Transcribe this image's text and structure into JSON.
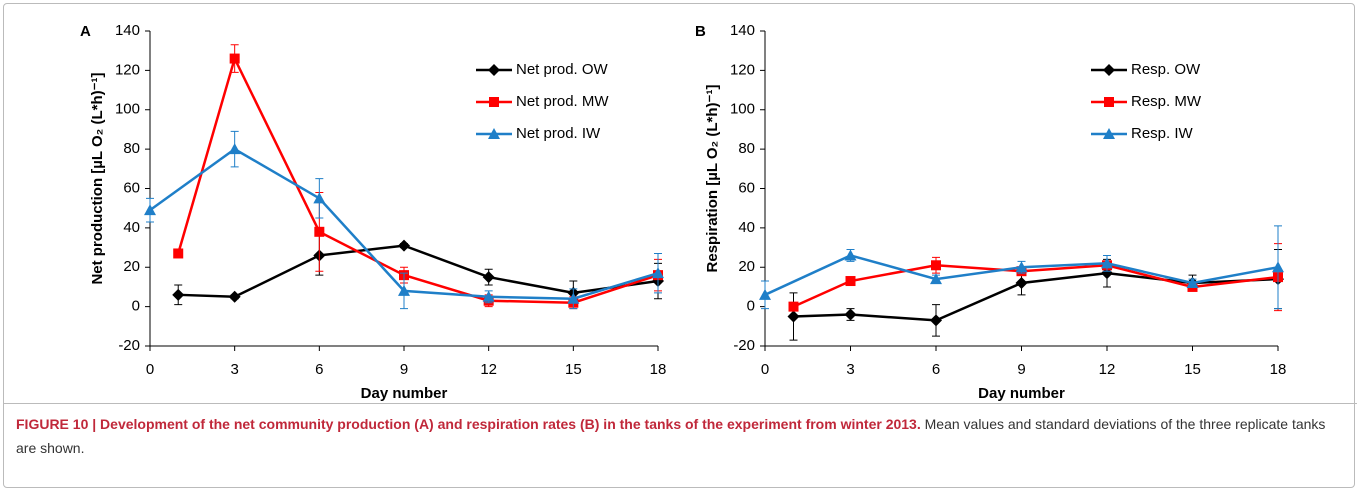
{
  "chart_data": [
    {
      "type": "line",
      "panel_label": "A",
      "ylabel": "Net production [µL O₂ (L*h)⁻¹]",
      "xlabel": "Day number",
      "xlim": [
        0,
        18
      ],
      "xticks": [
        0,
        3,
        6,
        9,
        12,
        15,
        18
      ],
      "ylim": [
        -20,
        140
      ],
      "yticks": [
        -20,
        0,
        20,
        40,
        60,
        80,
        100,
        120,
        140
      ],
      "legend": "upper right",
      "series": [
        {
          "name": "Net prod. OW",
          "color": "#000000",
          "marker": "diamond",
          "x": [
            1,
            3,
            6,
            9,
            12,
            15,
            18
          ],
          "values": [
            6,
            5,
            26,
            31,
            15,
            7,
            13
          ],
          "errors": [
            5,
            1,
            10,
            1,
            4,
            6,
            9
          ]
        },
        {
          "name": "Net prod. MW",
          "color": "#ff0000",
          "marker": "square",
          "x": [
            1,
            3,
            6,
            9,
            12,
            15,
            18
          ],
          "values": [
            27,
            126,
            38,
            16,
            3,
            2,
            16
          ],
          "errors": [
            1,
            7,
            20,
            4,
            3,
            3,
            8
          ]
        },
        {
          "name": "Net prod. IW",
          "color": "#1f7fc8",
          "marker": "triangle",
          "x": [
            0,
            3,
            6,
            9,
            12,
            15,
            18
          ],
          "values": [
            49,
            80,
            55,
            8,
            5,
            4,
            17
          ],
          "errors": [
            6,
            9,
            10,
            9,
            3,
            5,
            10
          ]
        }
      ]
    },
    {
      "type": "line",
      "panel_label": "B",
      "ylabel": "Respiration [µL O₂ (L*h)⁻¹]",
      "xlabel": "Day number",
      "xlim": [
        0,
        18
      ],
      "xticks": [
        0,
        3,
        6,
        9,
        12,
        15,
        18
      ],
      "ylim": [
        -20,
        140
      ],
      "yticks": [
        -20,
        0,
        20,
        40,
        60,
        80,
        100,
        120,
        140
      ],
      "legend": "upper right",
      "series": [
        {
          "name": "Resp. OW",
          "color": "#000000",
          "marker": "diamond",
          "x": [
            1,
            3,
            6,
            9,
            12,
            15,
            18
          ],
          "values": [
            -5,
            -4,
            -7,
            12,
            17,
            12,
            14
          ],
          "errors": [
            12,
            3,
            8,
            6,
            7,
            4,
            15
          ]
        },
        {
          "name": "Resp. MW",
          "color": "#ff0000",
          "marker": "square",
          "x": [
            1,
            3,
            6,
            9,
            12,
            15,
            18
          ],
          "values": [
            0,
            13,
            21,
            18,
            21,
            10,
            15
          ],
          "errors": [
            1,
            1,
            4,
            2,
            2,
            2,
            17
          ]
        },
        {
          "name": "Resp. IW",
          "color": "#1f7fc8",
          "marker": "triangle",
          "x": [
            0,
            3,
            6,
            9,
            12,
            15,
            18
          ],
          "values": [
            6,
            26,
            14,
            20,
            22,
            12,
            20
          ],
          "errors": [
            7,
            3,
            2,
            3,
            4,
            2,
            21
          ]
        }
      ]
    }
  ],
  "caption": {
    "bold": "FIGURE 10 | Development of the net community production (A) and respiration rates (B) in the tanks of the experiment from winter 2013.",
    "text": "Mean values and standard deviations of the three replicate tanks are shown."
  }
}
